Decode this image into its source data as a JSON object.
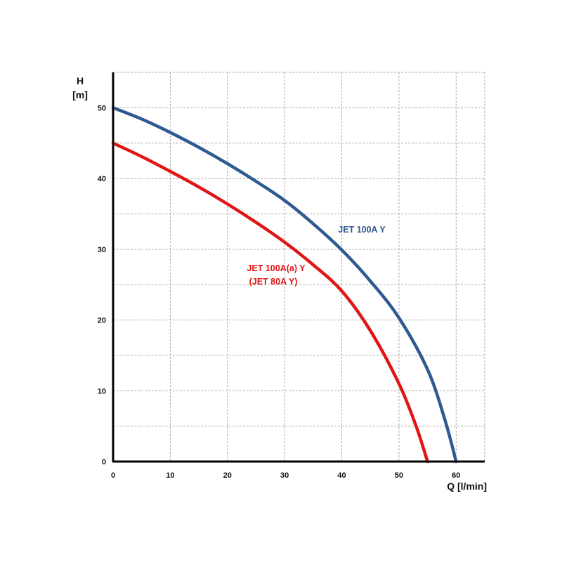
{
  "chart_data": {
    "type": "line",
    "title": "",
    "xlabel": "Q [l/min]",
    "ylabel_line1": "H",
    "ylabel_line2": "[m]",
    "xlim": [
      0,
      65
    ],
    "ylim": [
      0,
      55
    ],
    "grid": true,
    "x_ticks": [
      0,
      10,
      20,
      30,
      40,
      50,
      60
    ],
    "y_ticks": [
      0,
      10,
      20,
      30,
      40,
      50
    ],
    "series": [
      {
        "name": "JET 100A Y",
        "color": "#2f5a91",
        "x": [
          0,
          5,
          10,
          15,
          20,
          25,
          30,
          35,
          40,
          45,
          50,
          55,
          58,
          60
        ],
        "y": [
          50,
          48.4,
          46.5,
          44.4,
          42.1,
          39.6,
          36.9,
          33.6,
          29.9,
          25.5,
          20.3,
          13,
          6,
          0
        ]
      },
      {
        "name": "JET 100A(a) Y",
        "name_line2": "(JET 80A Y)",
        "color": "#e01515",
        "x": [
          0,
          5,
          10,
          15,
          20,
          25,
          30,
          35,
          40,
          45,
          50,
          53,
          55
        ],
        "y": [
          45,
          43.1,
          41,
          38.8,
          36.4,
          33.8,
          31,
          27.8,
          24.1,
          18.5,
          11,
          5,
          0
        ]
      }
    ]
  }
}
